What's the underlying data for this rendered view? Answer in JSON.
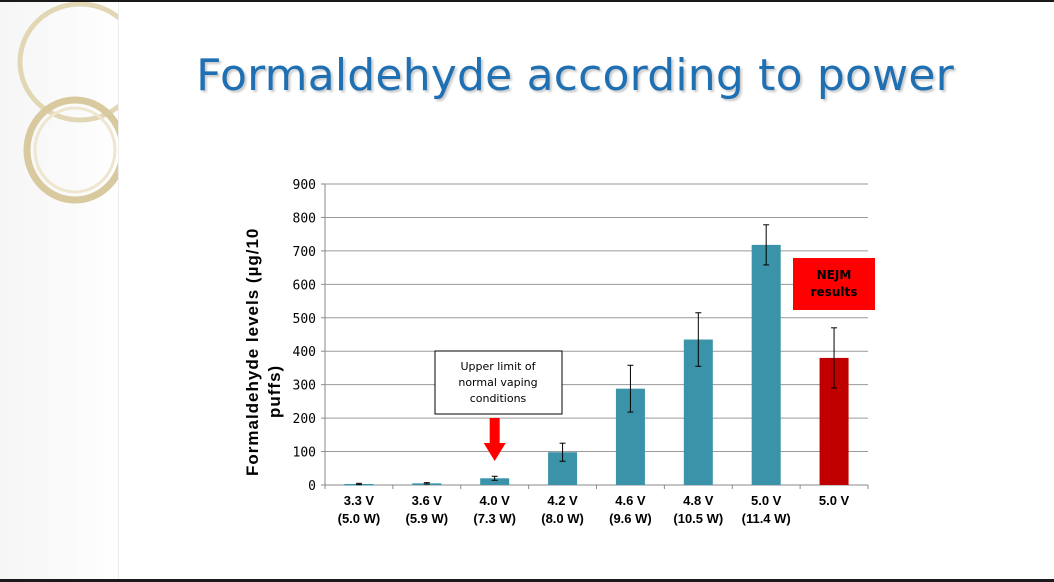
{
  "slide": {
    "title": "Formaldehyde according to power"
  },
  "chart_data": {
    "type": "bar",
    "title": "",
    "ylabel": "Formaldehyde levels (µg/10 puffs)",
    "ylabel_lines": [
      "Formaldehyde levels (µg/10",
      "puffs)"
    ],
    "xlabel": "",
    "ylim": [
      0,
      900
    ],
    "yticks": [
      0,
      100,
      200,
      300,
      400,
      500,
      600,
      700,
      800,
      900
    ],
    "grid": true,
    "categories": [
      [
        "3.3 V",
        "(5.0 W)"
      ],
      [
        "3.6 V",
        "(5.9 W)"
      ],
      [
        "4.0 V",
        "(7.3 W)"
      ],
      [
        "4.2 V",
        "(8.0 W)"
      ],
      [
        "4.6 V",
        "(9.6 W)"
      ],
      [
        "4.8 V",
        "(10.5 W)"
      ],
      [
        "5.0 V",
        "(11.4 W)"
      ],
      [
        "5.0 V",
        ""
      ]
    ],
    "values": [
      3,
      5,
      20,
      98,
      288,
      435,
      718,
      380
    ],
    "errors": [
      2,
      2,
      6,
      27,
      70,
      80,
      60,
      90
    ],
    "colors": [
      "#3a93a8",
      "#3a93a8",
      "#3a93a8",
      "#3a93a8",
      "#3a93a8",
      "#3a93a8",
      "#3a93a8",
      "#c00000"
    ],
    "annotations": {
      "limit_box": {
        "lines": [
          "Upper limit of",
          "normal vaping",
          "conditions"
        ]
      },
      "arrow_color": "#ff0000",
      "nejm_box": {
        "lines": [
          "NEJM",
          "results"
        ],
        "color": "#ff0000"
      }
    }
  }
}
